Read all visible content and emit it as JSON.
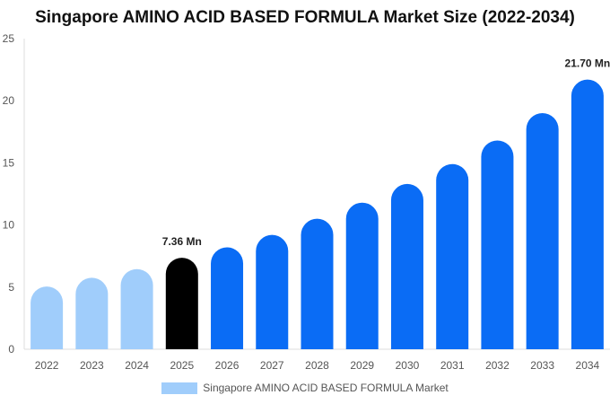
{
  "chart_data": {
    "type": "bar",
    "title": "Singapore AMINO ACID BASED FORMULA Market Size (2022-2034)",
    "xlabel": "",
    "ylabel": "",
    "categories": [
      "2022",
      "2023",
      "2024",
      "2025",
      "2026",
      "2027",
      "2028",
      "2029",
      "2030",
      "2031",
      "2032",
      "2033",
      "2034"
    ],
    "series": [
      {
        "name": "Singapore AMINO ACID BASED FORMULA Market",
        "values": [
          5.05,
          5.75,
          6.45,
          7.36,
          8.2,
          9.2,
          10.5,
          11.8,
          13.3,
          14.9,
          16.8,
          19.0,
          21.7
        ]
      }
    ],
    "bar_colors": [
      "#a0cdfb",
      "#a0cdfb",
      "#a0cdfb",
      "#000000",
      "#0a6cf5",
      "#0a6cf5",
      "#0a6cf5",
      "#0a6cf5",
      "#0a6cf5",
      "#0a6cf5",
      "#0a6cf5",
      "#0a6cf5",
      "#0a6cf5"
    ],
    "data_labels": [
      {
        "index": 3,
        "text": "7.36 Mn"
      },
      {
        "index": 12,
        "text": "21.70 Mn"
      }
    ],
    "ylim": [
      0,
      25
    ],
    "yticks": [
      0,
      5,
      10,
      15,
      20,
      25
    ],
    "grid": false,
    "legend": {
      "position": "bottom",
      "color": "#a0cdfb"
    }
  }
}
